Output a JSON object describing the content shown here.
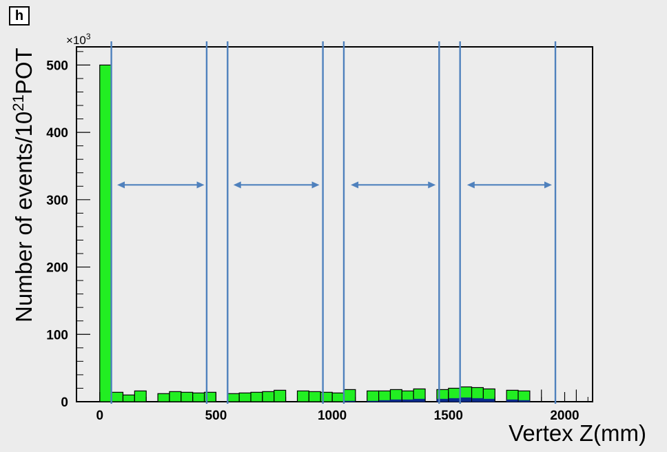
{
  "panel_label": "h",
  "chart_data": {
    "type": "bar",
    "subtype": "stacked-histogram",
    "title": "",
    "xlabel": "Vertex Z(mm)",
    "ylabel_parts": {
      "prefix": "Number of events/10",
      "superscript": "21",
      "suffix": "POT"
    },
    "y_multiplier_parts": {
      "base": "×10",
      "exp": "3"
    },
    "xlim": [
      -100,
      2120
    ],
    "ylim": [
      0,
      527
    ],
    "x_ticks": [
      0,
      500,
      1000,
      1500,
      2000
    ],
    "y_ticks": [
      0,
      100,
      200,
      300,
      400,
      500
    ],
    "grid": false,
    "legend": "none",
    "colors": {
      "plot_bg": "#ececec",
      "fill_main": "#22ee22",
      "fill_secondary": "#0b2a8a",
      "outline": "#000000",
      "marker": "#4f81bd"
    },
    "series": [
      {
        "key": "green",
        "bins": [
          {
            "x0": 0,
            "x1": 50,
            "y": 500
          },
          {
            "x0": 50,
            "x1": 100,
            "y": 14
          },
          {
            "x0": 100,
            "x1": 150,
            "y": 10
          },
          {
            "x0": 150,
            "x1": 200,
            "y": 16
          },
          {
            "x0": 250,
            "x1": 300,
            "y": 12
          },
          {
            "x0": 300,
            "x1": 350,
            "y": 15
          },
          {
            "x0": 350,
            "x1": 400,
            "y": 14
          },
          {
            "x0": 400,
            "x1": 450,
            "y": 13
          },
          {
            "x0": 450,
            "x1": 500,
            "y": 14
          },
          {
            "x0": 550,
            "x1": 600,
            "y": 12
          },
          {
            "x0": 600,
            "x1": 650,
            "y": 13
          },
          {
            "x0": 650,
            "x1": 700,
            "y": 14
          },
          {
            "x0": 700,
            "x1": 750,
            "y": 15
          },
          {
            "x0": 750,
            "x1": 800,
            "y": 17
          },
          {
            "x0": 850,
            "x1": 900,
            "y": 16
          },
          {
            "x0": 900,
            "x1": 950,
            "y": 15
          },
          {
            "x0": 950,
            "x1": 1000,
            "y": 14
          },
          {
            "x0": 1000,
            "x1": 1050,
            "y": 13
          },
          {
            "x0": 1050,
            "x1": 1100,
            "y": 18
          },
          {
            "x0": 1150,
            "x1": 1200,
            "y": 16
          },
          {
            "x0": 1200,
            "x1": 1250,
            "y": 16
          },
          {
            "x0": 1250,
            "x1": 1300,
            "y": 18
          },
          {
            "x0": 1300,
            "x1": 1350,
            "y": 16
          },
          {
            "x0": 1350,
            "x1": 1400,
            "y": 19
          },
          {
            "x0": 1450,
            "x1": 1500,
            "y": 18
          },
          {
            "x0": 1500,
            "x1": 1550,
            "y": 20
          },
          {
            "x0": 1550,
            "x1": 1600,
            "y": 22
          },
          {
            "x0": 1600,
            "x1": 1650,
            "y": 21
          },
          {
            "x0": 1650,
            "x1": 1700,
            "y": 19
          },
          {
            "x0": 1750,
            "x1": 1800,
            "y": 17
          },
          {
            "x0": 1800,
            "x1": 1850,
            "y": 16
          }
        ]
      },
      {
        "key": "blue",
        "bins": [
          {
            "x0": 1050,
            "x1": 1100,
            "y": 1
          },
          {
            "x0": 1150,
            "x1": 1200,
            "y": 1
          },
          {
            "x0": 1200,
            "x1": 1250,
            "y": 2
          },
          {
            "x0": 1250,
            "x1": 1300,
            "y": 3
          },
          {
            "x0": 1300,
            "x1": 1350,
            "y": 3
          },
          {
            "x0": 1350,
            "x1": 1400,
            "y": 4
          },
          {
            "x0": 1450,
            "x1": 1500,
            "y": 4
          },
          {
            "x0": 1500,
            "x1": 1550,
            "y": 5
          },
          {
            "x0": 1550,
            "x1": 1600,
            "y": 6
          },
          {
            "x0": 1600,
            "x1": 1650,
            "y": 5
          },
          {
            "x0": 1650,
            "x1": 1700,
            "y": 4
          },
          {
            "x0": 1750,
            "x1": 1800,
            "y": 3
          },
          {
            "x0": 1800,
            "x1": 1850,
            "y": 2
          }
        ]
      }
    ],
    "spikes": [
      1900,
      2050
    ],
    "vertical_markers": [
      50,
      460,
      550,
      960,
      1050,
      1460,
      1550,
      1960
    ],
    "double_arrows": [
      {
        "x0": 75,
        "x1": 450,
        "y": 322
      },
      {
        "x0": 575,
        "x1": 945,
        "y": 322
      },
      {
        "x0": 1080,
        "x1": 1445,
        "y": 322
      },
      {
        "x0": 1580,
        "x1": 1945,
        "y": 322
      }
    ]
  }
}
